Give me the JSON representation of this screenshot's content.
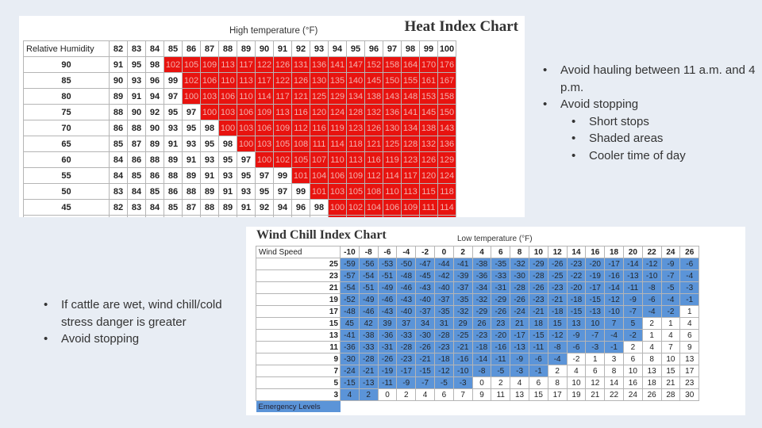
{
  "heat_index": {
    "title": "Heat Index Chart",
    "axis_label": "High temperature (°F)",
    "corner_label": "Relative Humidity",
    "temperatures": [
      "82",
      "83",
      "84",
      "85",
      "86",
      "87",
      "88",
      "89",
      "90",
      "91",
      "92",
      "93",
      "94",
      "95",
      "96",
      "97",
      "98",
      "99",
      "100"
    ],
    "rows": [
      {
        "rh": "90",
        "values": [
          "91",
          "95",
          "98",
          "102",
          "105",
          "109",
          "113",
          "117",
          "122",
          "126",
          "131",
          "136",
          "141",
          "147",
          "152",
          "158",
          "164",
          "170",
          "176"
        ],
        "hot_from": 3
      },
      {
        "rh": "85",
        "values": [
          "90",
          "93",
          "96",
          "99",
          "102",
          "106",
          "110",
          "113",
          "117",
          "122",
          "126",
          "130",
          "135",
          "140",
          "145",
          "150",
          "155",
          "161",
          "167"
        ],
        "hot_from": 4
      },
      {
        "rh": "80",
        "values": [
          "89",
          "91",
          "94",
          "97",
          "100",
          "103",
          "106",
          "110",
          "114",
          "117",
          "121",
          "125",
          "129",
          "134",
          "138",
          "143",
          "148",
          "153",
          "158"
        ],
        "hot_from": 4
      },
      {
        "rh": "75",
        "values": [
          "88",
          "90",
          "92",
          "95",
          "97",
          "100",
          "103",
          "106",
          "109",
          "113",
          "116",
          "120",
          "124",
          "128",
          "132",
          "136",
          "141",
          "145",
          "150"
        ],
        "hot_from": 5
      },
      {
        "rh": "70",
        "values": [
          "86",
          "88",
          "90",
          "93",
          "95",
          "98",
          "100",
          "103",
          "106",
          "109",
          "112",
          "116",
          "119",
          "123",
          "126",
          "130",
          "134",
          "138",
          "143"
        ],
        "hot_from": 6
      },
      {
        "rh": "65",
        "values": [
          "85",
          "87",
          "89",
          "91",
          "93",
          "95",
          "98",
          "100",
          "103",
          "105",
          "108",
          "111",
          "114",
          "118",
          "121",
          "125",
          "128",
          "132",
          "136"
        ],
        "hot_from": 7
      },
      {
        "rh": "60",
        "values": [
          "84",
          "86",
          "88",
          "89",
          "91",
          "93",
          "95",
          "97",
          "100",
          "102",
          "105",
          "107",
          "110",
          "113",
          "116",
          "119",
          "123",
          "126",
          "129"
        ],
        "hot_from": 8
      },
      {
        "rh": "55",
        "values": [
          "84",
          "85",
          "86",
          "88",
          "89",
          "91",
          "93",
          "95",
          "97",
          "99",
          "101",
          "104",
          "106",
          "109",
          "112",
          "114",
          "117",
          "120",
          "124"
        ],
        "hot_from": 10
      },
      {
        "rh": "50",
        "values": [
          "83",
          "84",
          "85",
          "86",
          "88",
          "89",
          "91",
          "93",
          "95",
          "97",
          "99",
          "101",
          "103",
          "105",
          "108",
          "110",
          "113",
          "115",
          "118"
        ],
        "hot_from": 11
      },
      {
        "rh": "45",
        "values": [
          "82",
          "83",
          "84",
          "85",
          "87",
          "88",
          "89",
          "91",
          "92",
          "94",
          "96",
          "98",
          "100",
          "102",
          "104",
          "106",
          "109",
          "111",
          "114"
        ],
        "hot_from": 12
      }
    ]
  },
  "wind_chill": {
    "title": "Wind Chill Index Chart",
    "axis_label": "Low temperature (°F)",
    "corner_label": "Wind Speed",
    "temperatures": [
      "-10",
      "-8",
      "-6",
      "-4",
      "-2",
      "0",
      "2",
      "4",
      "6",
      "8",
      "10",
      "12",
      "14",
      "16",
      "18",
      "20",
      "22",
      "24",
      "26"
    ],
    "rows": [
      {
        "speed": "25",
        "values": [
          "-59",
          "-56",
          "-53",
          "-50",
          "-47",
          "-44",
          "-41",
          "-38",
          "-35",
          "-32",
          "-29",
          "-26",
          "-23",
          "-20",
          "-17",
          "-14",
          "-12",
          "-9",
          "-6"
        ],
        "cold_until": 19
      },
      {
        "speed": "23",
        "values": [
          "-57",
          "-54",
          "-51",
          "-48",
          "-45",
          "-42",
          "-39",
          "-36",
          "-33",
          "-30",
          "-28",
          "-25",
          "-22",
          "-19",
          "-16",
          "-13",
          "-10",
          "-7",
          "-4"
        ],
        "cold_until": 19
      },
      {
        "speed": "21",
        "values": [
          "-54",
          "-51",
          "-49",
          "-46",
          "-43",
          "-40",
          "-37",
          "-34",
          "-31",
          "-28",
          "-26",
          "-23",
          "-20",
          "-17",
          "-14",
          "-11",
          "-8",
          "-5",
          "-3"
        ],
        "cold_until": 19
      },
      {
        "speed": "19",
        "values": [
          "-52",
          "-49",
          "-46",
          "-43",
          "-40",
          "-37",
          "-35",
          "-32",
          "-29",
          "-26",
          "-23",
          "-21",
          "-18",
          "-15",
          "-12",
          "-9",
          "-6",
          "-4",
          "-1"
        ],
        "cold_until": 19
      },
      {
        "speed": "17",
        "values": [
          "-48",
          "-46",
          "-43",
          "-40",
          "-37",
          "-35",
          "-32",
          "-29",
          "-26",
          "-24",
          "-21",
          "-18",
          "-15",
          "-13",
          "-10",
          "-7",
          "-4",
          "-2",
          "1"
        ],
        "cold_until": 18
      },
      {
        "speed": "15",
        "values": [
          "45",
          "42",
          "39",
          "37",
          "34",
          "31",
          "29",
          "26",
          "23",
          "21",
          "18",
          "15",
          "13",
          "10",
          "7",
          "5",
          "2",
          "1",
          "4"
        ],
        "cold_until": 16
      },
      {
        "speed": "13",
        "values": [
          "-41",
          "-38",
          "-36",
          "-33",
          "-30",
          "-28",
          "-25",
          "-23",
          "-20",
          "-17",
          "-15",
          "-12",
          "-9",
          "-7",
          "-4",
          "-2",
          "1",
          "4",
          "6"
        ],
        "cold_until": 16
      },
      {
        "speed": "11",
        "values": [
          "-36",
          "-33",
          "-31",
          "-28",
          "-26",
          "-23",
          "-21",
          "-18",
          "-16",
          "-13",
          "-11",
          "-8",
          "-6",
          "-3",
          "-1",
          "2",
          "4",
          "7",
          "9"
        ],
        "cold_until": 15
      },
      {
        "speed": "9",
        "values": [
          "-30",
          "-28",
          "-26",
          "-23",
          "-21",
          "-18",
          "-16",
          "-14",
          "-11",
          "-9",
          "-6",
          "-4",
          "-2",
          "1",
          "3",
          "6",
          "8",
          "10",
          "13"
        ],
        "cold_until": 12
      },
      {
        "speed": "7",
        "values": [
          "-24",
          "-21",
          "-19",
          "-17",
          "-15",
          "-12",
          "-10",
          "-8",
          "-5",
          "-3",
          "-1",
          "2",
          "4",
          "6",
          "8",
          "10",
          "13",
          "15",
          "17"
        ],
        "cold_until": 11
      },
      {
        "speed": "5",
        "values": [
          "-15",
          "-13",
          "-11",
          "-9",
          "-7",
          "-5",
          "-3",
          "0",
          "2",
          "4",
          "6",
          "8",
          "10",
          "12",
          "14",
          "16",
          "18",
          "21",
          "23"
        ],
        "cold_until": 7
      },
      {
        "speed": "3",
        "values": [
          "4",
          "2",
          "0",
          "2",
          "4",
          "6",
          "7",
          "9",
          "11",
          "13",
          "15",
          "17",
          "19",
          "21",
          "22",
          "24",
          "26",
          "28",
          "30"
        ],
        "cold_until": 2
      }
    ],
    "legend_label": "Emergency Levels"
  },
  "right_notes": [
    {
      "text": "Avoid hauling between 11 a.m. and 4 p.m.",
      "level": 0
    },
    {
      "text": "Avoid stopping",
      "level": 0
    },
    {
      "text": "Short stops",
      "level": 1
    },
    {
      "text": "Shaded areas",
      "level": 1
    },
    {
      "text": "Cooler time of day",
      "level": 1
    }
  ],
  "left_notes": [
    {
      "text": "If cattle are wet, wind chill/cold stress danger is greater",
      "level": 0
    },
    {
      "text": "Avoid stopping",
      "level": 0
    }
  ],
  "colors": {
    "heat_danger": "#e8130f",
    "cold_danger": "#5b94d8",
    "background": "#e8edf4"
  }
}
